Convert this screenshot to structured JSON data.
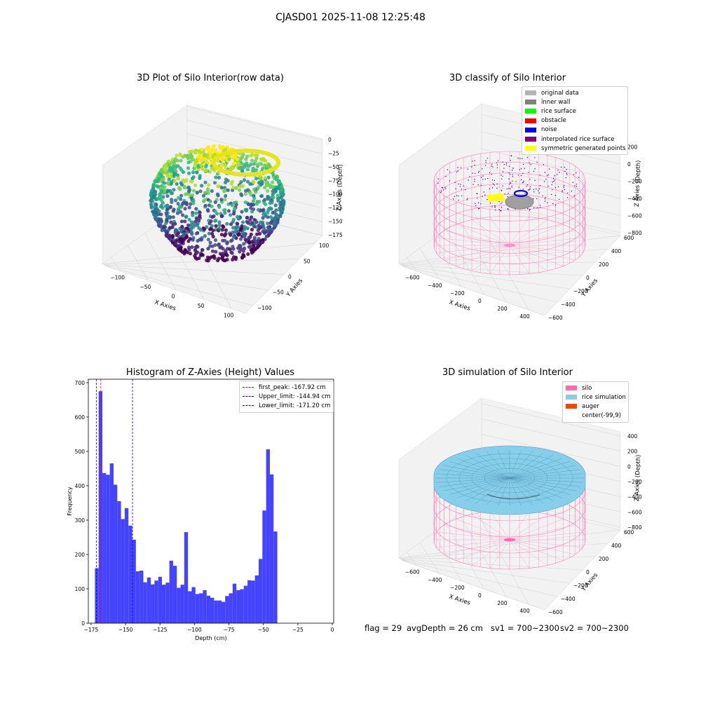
{
  "suptitle": "CJASD01 2025-11-08 12:25:48",
  "chart_data": [
    {
      "type": "scatter",
      "subtype": "3d",
      "title": "3D Plot of Silo Interior(row data)",
      "xlabel": "X Axies",
      "ylabel": "Y Axies",
      "zlabel": "Z Axies (Depth)",
      "x_ticks": [
        "−100",
        "−50",
        "0",
        "50",
        "100"
      ],
      "y_ticks": [
        "−100",
        "−50",
        "0",
        "50",
        "100"
      ],
      "z_ticks": [
        "0",
        "−25",
        "−50",
        "−75",
        "−100",
        "−125",
        "−150",
        "−175"
      ],
      "colormap": "viridis",
      "grid": true
    },
    {
      "type": "scatter",
      "subtype": "3d",
      "title": "3D classify of Silo Interior",
      "xlabel": "X Axies",
      "ylabel": "Y Axies",
      "zlabel": "Z Axies (Depth)",
      "x_ticks": [
        "−600",
        "−400",
        "−200",
        "0",
        "200",
        "400"
      ],
      "y_ticks": [
        "−600",
        "−400",
        "−200",
        "0",
        "200",
        "400",
        "600"
      ],
      "z_ticks": [
        "200",
        "0",
        "−200",
        "−400",
        "−600",
        "−800"
      ],
      "legend_position": "top-right",
      "legend": [
        {
          "label": "original data",
          "color": "#b3b3b3"
        },
        {
          "label": "inner wall",
          "color": "#808080"
        },
        {
          "label": "rice surface",
          "color": "#00ff00"
        },
        {
          "label": "obstacle",
          "color": "#ff0000"
        },
        {
          "label": "noise",
          "color": "#0000ff"
        },
        {
          "label": "interpolated rice surface",
          "color": "#800080"
        },
        {
          "label": "symmetric generated points",
          "color": "#ffff00"
        }
      ],
      "grid": true
    },
    {
      "type": "bar",
      "subtype": "histogram",
      "title": "Histogram of Z-Axies (Height) Values",
      "xlabel": "Depth (cm)",
      "ylabel": "Frequency",
      "xlim": [
        -177,
        1
      ],
      "ylim": [
        0,
        710
      ],
      "x_ticks": [
        -175,
        -150,
        -125,
        -100,
        -75,
        -50,
        -25,
        0
      ],
      "x_tick_labels": [
        "−175",
        "−150",
        "−125",
        "−100",
        "−75",
        "−50",
        "−25",
        "0"
      ],
      "y_ticks": [
        0,
        100,
        200,
        300,
        400,
        500,
        600,
        700
      ],
      "bin_start": -172.2,
      "bin_width": 2.7,
      "values": [
        160,
        675,
        437,
        432,
        465,
        403,
        355,
        303,
        335,
        284,
        243,
        151,
        153,
        119,
        133,
        113,
        124,
        135,
        112,
        118,
        182,
        167,
        103,
        112,
        265,
        93,
        105,
        85,
        87,
        96,
        80,
        74,
        66,
        66,
        62,
        79,
        87,
        115,
        96,
        99,
        109,
        125,
        124,
        139,
        187,
        328,
        506,
        433,
        267
      ],
      "bar_color": "#4444ff",
      "vlines": [
        {
          "label": "first_peak: -167.92 cm",
          "x": -167.92,
          "color": "#ff0000"
        },
        {
          "label": "Upper_limit: -144.94 cm",
          "x": -144.94,
          "color": "#0000ff"
        },
        {
          "label": "Lower_limit: -171.20 cm",
          "x": -171.2,
          "color": "#0000ff"
        }
      ],
      "legend_position": "top-right"
    },
    {
      "type": "surface",
      "subtype": "3d",
      "title": "3D simulation of Silo Interior",
      "xlabel": "X Axies",
      "ylabel": "Y Axies",
      "zlabel": "Z Axies (Depth)",
      "x_ticks": [
        "−600",
        "−400",
        "−200",
        "0",
        "200",
        "400"
      ],
      "y_ticks": [
        "−600",
        "−400",
        "−200",
        "0",
        "200",
        "400",
        "600"
      ],
      "z_ticks": [
        "400",
        "200",
        "0",
        "−200",
        "−400",
        "−600",
        "−800"
      ],
      "legend_position": "top-right",
      "legend": [
        {
          "label": "silo",
          "color": "#ff69b4"
        },
        {
          "label": "rice simulation",
          "color": "#87ceeb"
        },
        {
          "label": "auger",
          "color": "#ff4500"
        },
        {
          "label": "center(-99,9)",
          "color": "#ffffff"
        }
      ],
      "grid": true
    }
  ],
  "status": {
    "flag": "flag = 29",
    "avg_depth": "avgDepth = 26 cm",
    "sv1": "sv1 = 700~2300",
    "sv2": "sv2 = 700~2300"
  }
}
